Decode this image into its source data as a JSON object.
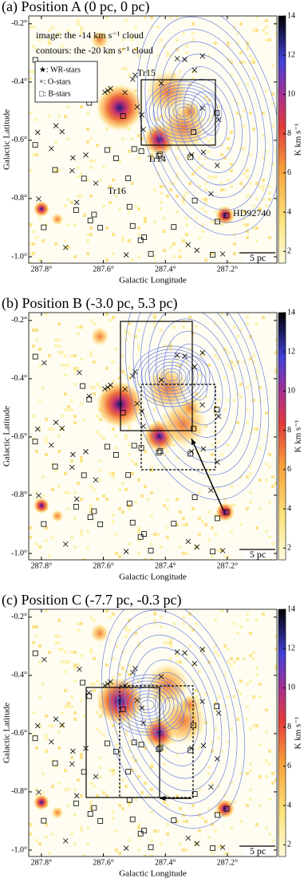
{
  "chart_data": [
    {
      "type": "image",
      "title": "(a) Position A (0 pc, 0 pc)",
      "x_label": "Galactic Longitude",
      "y_label": "Galactic Latitude",
      "xlim": [
        287.841,
        287.04
      ],
      "xticks": [
        {
          "value": 287.8,
          "label": "287.8°"
        },
        {
          "value": 287.6,
          "label": "287.6°"
        },
        {
          "value": 287.4,
          "label": "287.4°"
        },
        {
          "value": 287.2,
          "label": "287.2°"
        }
      ],
      "ylim": [
        -1.022,
        -0.173
      ],
      "yticks": [
        {
          "value": -0.2,
          "label": "-0.2°"
        },
        {
          "value": -0.4,
          "label": "-0.4°"
        },
        {
          "value": -0.6,
          "label": "-0.6°"
        },
        {
          "value": -0.8,
          "label": "-0.8°"
        },
        {
          "value": -1.0,
          "label": "-1.0°"
        }
      ],
      "colorbar": {
        "label": "K km s⁻¹",
        "lim": [
          1.4,
          14
        ],
        "ticks": [
          2,
          4,
          6,
          8,
          10,
          12,
          14
        ]
      },
      "annotations": [
        "image: the -14 km s⁻¹ cloud",
        "contours: the -20 km s⁻¹ cloud"
      ],
      "legend": [
        "★: WR-stars",
        "×: O-stars",
        "□: B-stars"
      ],
      "labels": [
        "Tr15",
        "Tr14",
        "Tr16",
        "HD92740"
      ],
      "scale_bar": "5 pc"
    },
    {
      "type": "image",
      "title": "(b) Position B (-3.0 pc, 5.3 pc)",
      "x_label": "Galactic Longitude",
      "y_label": "Galactic Latitude",
      "xlim": [
        287.841,
        287.04
      ],
      "xticks": [
        {
          "value": 287.8,
          "label": "287.8°"
        },
        {
          "value": 287.6,
          "label": "287.6°"
        },
        {
          "value": 287.4,
          "label": "287.4°"
        },
        {
          "value": 287.2,
          "label": "287.2°"
        }
      ],
      "ylim": [
        -1.022,
        -0.173
      ],
      "yticks": [
        {
          "value": -0.2,
          "label": "-0.2°"
        },
        {
          "value": -0.4,
          "label": "-0.4°"
        },
        {
          "value": -0.6,
          "label": "-0.6°"
        },
        {
          "value": -0.8,
          "label": "-0.8°"
        },
        {
          "value": -1.0,
          "label": "-1.0°"
        }
      ],
      "colorbar": {
        "label": "K km s⁻¹",
        "lim": [
          1.4,
          14
        ],
        "ticks": [
          2,
          4,
          6,
          8,
          10,
          12,
          14
        ]
      },
      "scale_bar": "5 pc"
    },
    {
      "type": "image",
      "title": "(c) Position C (-7.7 pc, -0.3 pc)",
      "x_label": "Galactic Longitude",
      "y_label": "Galactic Latitude",
      "xlim": [
        287.841,
        287.04
      ],
      "xticks": [
        {
          "value": 287.8,
          "label": "287.8°"
        },
        {
          "value": 287.6,
          "label": "287.6°"
        },
        {
          "value": 287.4,
          "label": "287.4°"
        },
        {
          "value": 287.2,
          "label": "287.2°"
        }
      ],
      "ylim": [
        -1.022,
        -0.173
      ],
      "yticks": [
        {
          "value": -0.2,
          "label": "-0.2°"
        },
        {
          "value": -0.4,
          "label": "-0.4°"
        },
        {
          "value": -0.6,
          "label": "-0.6°"
        },
        {
          "value": -0.8,
          "label": "-0.8°"
        },
        {
          "value": -1.0,
          "label": "-1.0°"
        }
      ],
      "colorbar": {
        "label": "K km s⁻¹",
        "lim": [
          1.4,
          14
        ],
        "ticks": [
          2,
          4,
          6,
          8,
          10,
          12,
          14
        ]
      },
      "scale_bar": "5 pc"
    }
  ]
}
